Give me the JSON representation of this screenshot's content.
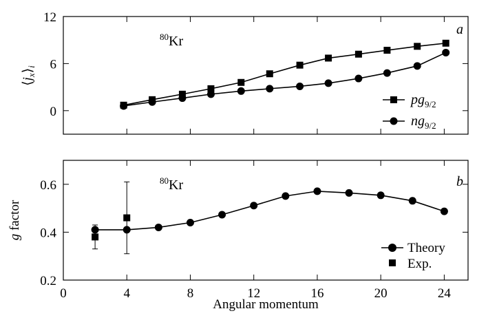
{
  "chart_data": [
    {
      "type": "line",
      "panel_label": "a",
      "annotation": "Kr",
      "annotation_mass": "80",
      "ylabel": "⟨j_x⟩_i",
      "xlabel": "",
      "xlim": [
        0,
        25.5
      ],
      "ylim": [
        -3,
        12
      ],
      "yticks": [
        0,
        6,
        12
      ],
      "grid": false,
      "legend_position": "bottom-right",
      "series": [
        {
          "name": "pg_{9/2}",
          "label_main": "pg",
          "label_sub": "9/2",
          "marker": "square",
          "x": [
            3.8,
            5.6,
            7.5,
            9.3,
            11.2,
            13.0,
            14.9,
            16.7,
            18.6,
            20.4,
            22.3,
            24.1
          ],
          "y": [
            0.7,
            1.4,
            2.1,
            2.8,
            3.6,
            4.7,
            5.8,
            6.7,
            7.2,
            7.7,
            8.2,
            8.6
          ]
        },
        {
          "name": "ng_{9/2}",
          "label_main": "ng",
          "label_sub": "9/2",
          "marker": "circle",
          "x": [
            3.8,
            5.6,
            7.5,
            9.3,
            11.2,
            13.0,
            14.9,
            16.7,
            18.6,
            20.4,
            22.3,
            24.1
          ],
          "y": [
            0.6,
            1.1,
            1.6,
            2.1,
            2.5,
            2.8,
            3.1,
            3.5,
            4.1,
            4.8,
            5.7,
            7.4
          ]
        }
      ]
    },
    {
      "type": "line",
      "panel_label": "b",
      "annotation": "Kr",
      "annotation_mass": "80",
      "ylabel": "g factor",
      "ylabel_italic": "g",
      "ylabel_rest": " factor",
      "xlabel": "Angular momentum",
      "xlim": [
        0,
        25.5
      ],
      "ylim": [
        0.2,
        0.7
      ],
      "yticks": [
        0.2,
        0.4,
        0.6
      ],
      "ytick_labels": [
        "0.2",
        "0.4",
        "0.6"
      ],
      "xticks": [
        0,
        4,
        8,
        12,
        16,
        20,
        24
      ],
      "xtick_labels": [
        "0",
        "4",
        "8",
        "12",
        "16",
        "20",
        "24"
      ],
      "grid": false,
      "legend_position": "bottom-right",
      "series": [
        {
          "name": "Theory",
          "marker": "circle",
          "x": [
            2,
            4,
            6,
            8,
            10,
            12,
            14,
            16,
            18,
            20,
            22,
            24
          ],
          "y": [
            0.41,
            0.41,
            0.42,
            0.44,
            0.473,
            0.511,
            0.551,
            0.571,
            0.564,
            0.554,
            0.531,
            0.487
          ]
        },
        {
          "name": "Exp.",
          "marker": "square",
          "x": [
            2,
            4
          ],
          "y": [
            0.38,
            0.46
          ],
          "err_low": [
            0.33,
            0.31
          ],
          "err_high": [
            0.43,
            0.61
          ]
        }
      ]
    }
  ]
}
